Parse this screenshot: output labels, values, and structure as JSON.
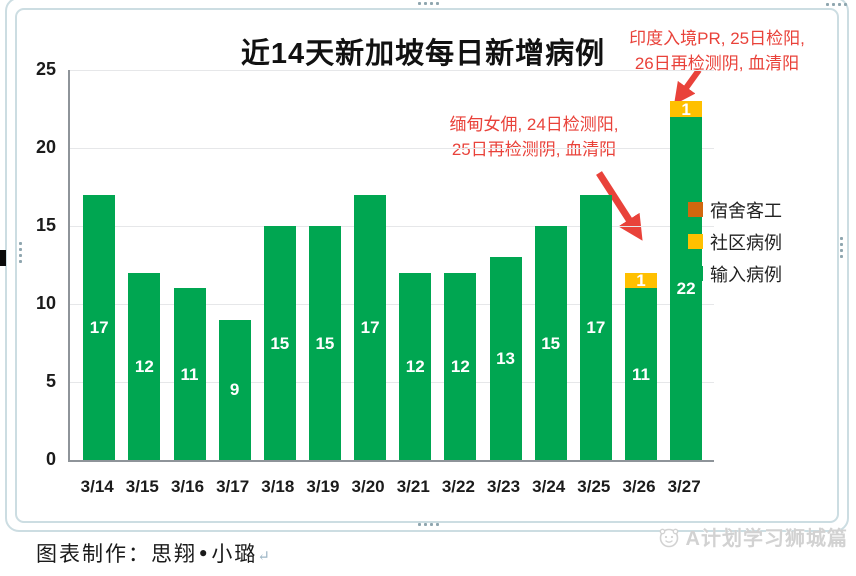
{
  "chart_data": {
    "type": "bar",
    "stacked": true,
    "title": "近14天新加坡每日新增病例",
    "categories": [
      "3/14",
      "3/15",
      "3/16",
      "3/17",
      "3/18",
      "3/19",
      "3/20",
      "3/21",
      "3/22",
      "3/23",
      "3/24",
      "3/25",
      "3/26",
      "3/27"
    ],
    "series": [
      {
        "name": "宿舍客工",
        "color": "#d1670e",
        "values": [
          0,
          0,
          0,
          0,
          0,
          0,
          0,
          0,
          0,
          0,
          0,
          0,
          0,
          0
        ]
      },
      {
        "name": "社区病例",
        "color": "#ffc000",
        "values": [
          0,
          0,
          0,
          0,
          0,
          0,
          0,
          0,
          0,
          0,
          0,
          0,
          1,
          1
        ]
      },
      {
        "name": "输入病例",
        "color": "#00a651",
        "values": [
          17,
          12,
          11,
          9,
          15,
          15,
          17,
          12,
          12,
          13,
          15,
          17,
          11,
          22
        ]
      }
    ],
    "totals": [
      17,
      12,
      11,
      9,
      15,
      15,
      17,
      12,
      12,
      13,
      15,
      17,
      12,
      23
    ],
    "ylim": [
      0,
      25
    ],
    "yticks": [
      0,
      5,
      10,
      15,
      20,
      25
    ],
    "grid": true,
    "legend_position": "right"
  },
  "annotations": {
    "india": {
      "line1": "印度入境PR, 25日检阳,",
      "line2": "26日再检测阴, 血清阳",
      "points_to": "3/27"
    },
    "myanmar": {
      "line1": "缅甸女佣, 24日检测阳,",
      "line2": "25日再检测阴, 血清阳",
      "points_to": "3/26"
    },
    "color": "#e9423a"
  },
  "footer": {
    "credit": "图表制作：思翔•小璐",
    "return_mark": "↵",
    "watermark": "A计划学习狮城篇"
  },
  "colors": {
    "imported_green": "#00a651",
    "community_yellow": "#ffc000",
    "dorm_orange": "#d1670e",
    "annotation_red": "#e9423a",
    "frame_gray_blue": "#ccdde2"
  }
}
